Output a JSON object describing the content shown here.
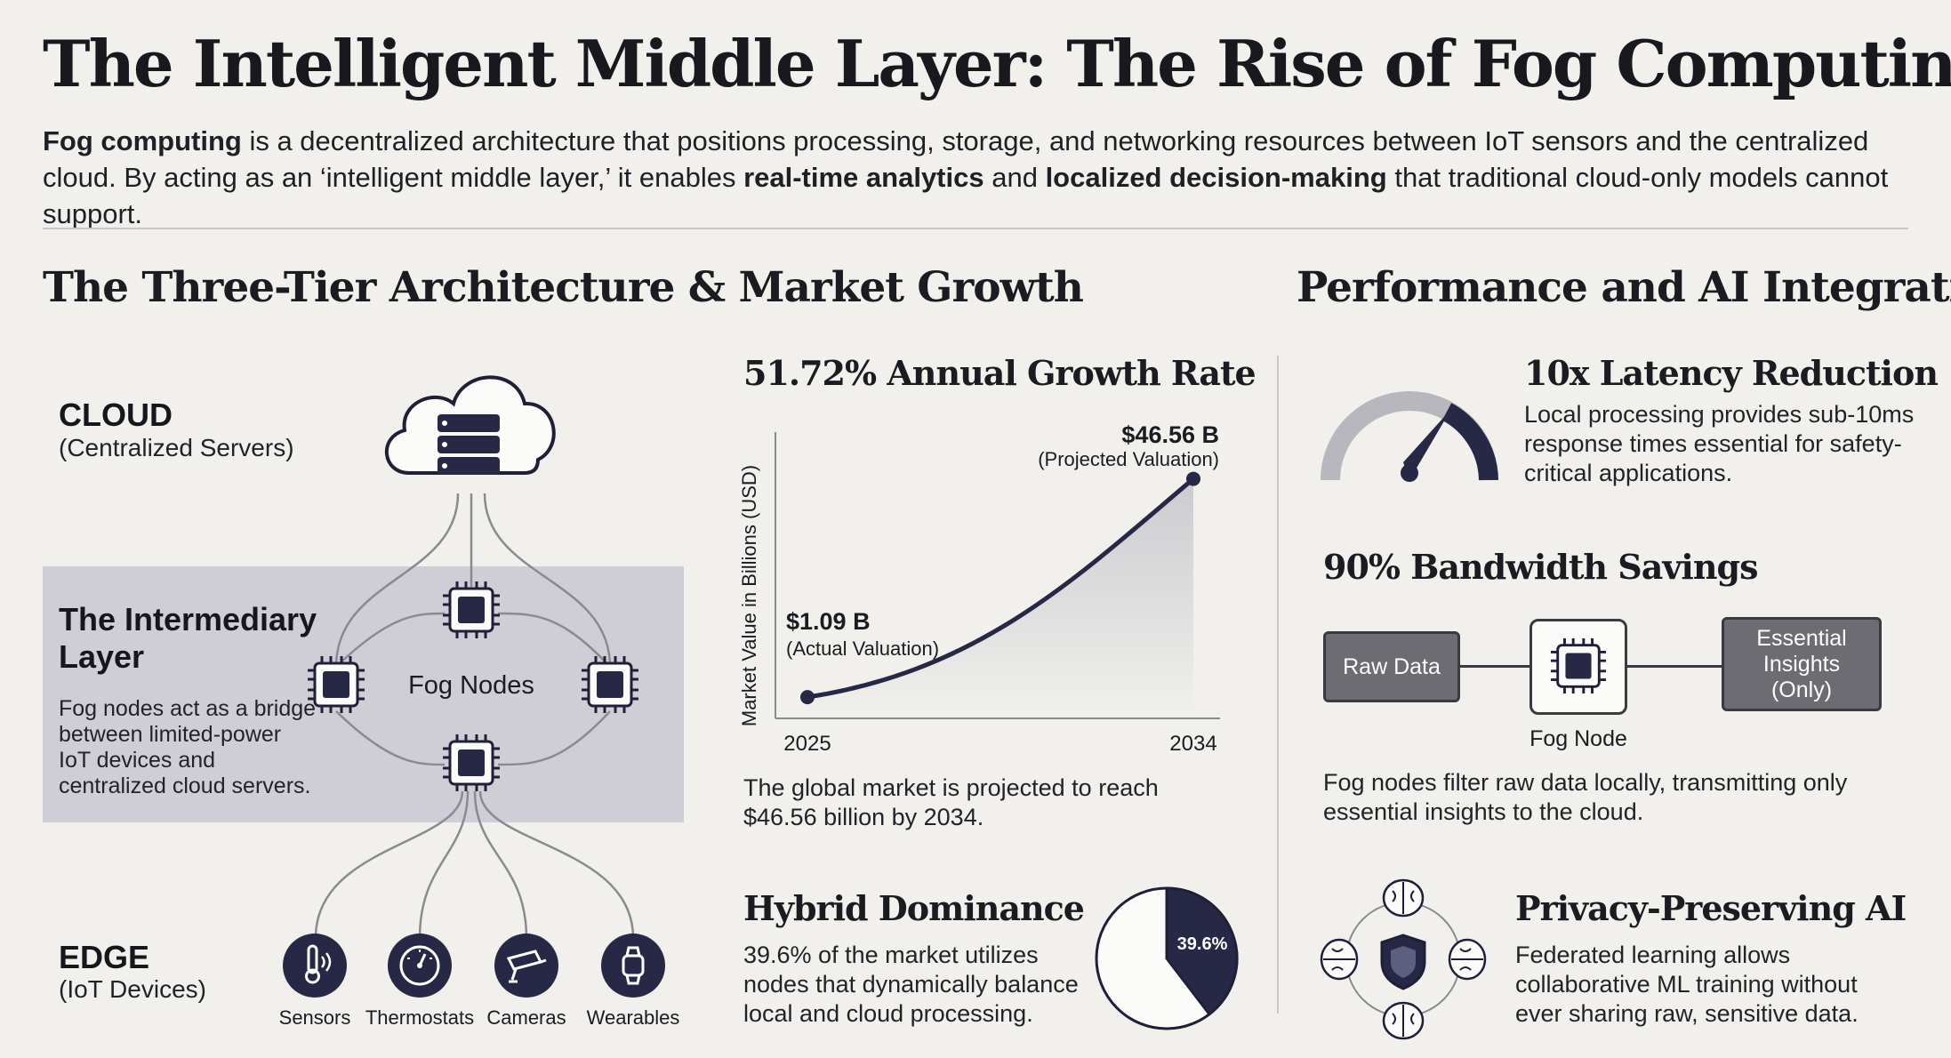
{
  "title": "The Intelligent Middle Layer: The Rise of Fog Computing",
  "intro": {
    "b1": "Fog computing",
    "t1": " is a decentralized architecture that positions processing, storage, and networking resources between IoT sensors and the centralized cloud. By acting as an ‘intelligent middle layer,’ it enables ",
    "b2": "real-time analytics",
    "t2": " and ",
    "b3": "localized decision-making",
    "t3": " that traditional cloud-only models cannot support."
  },
  "left_section": {
    "heading": "The Three-Tier Architecture & Market Growth",
    "cloud": {
      "label": "CLOUD",
      "sub": "(Centralized Servers)"
    },
    "middle": {
      "label": "The Intermediary Layer",
      "desc": "Fog nodes act as a bridge between limited-power IoT devices and centralized cloud servers.",
      "nodes_label": "Fog Nodes"
    },
    "edge": {
      "label": "EDGE",
      "sub": "(IoT Devices)"
    },
    "devices": [
      {
        "label": "Sensors",
        "icon": "thermometer-signal-icon"
      },
      {
        "label": "Thermostats",
        "icon": "dial-icon"
      },
      {
        "label": "Cameras",
        "icon": "camera-icon"
      },
      {
        "label": "Wearables",
        "icon": "smartwatch-icon"
      }
    ]
  },
  "growth": {
    "heading": "51.72% Annual Growth Rate",
    "caption": "The global market is projected to reach $46.56 billion by 2034."
  },
  "chart_data": {
    "type": "line",
    "ylabel": "Market Value in Billions (USD)",
    "x": [
      "2025",
      "2034"
    ],
    "series": [
      {
        "values": [
          1.09,
          46.56
        ]
      }
    ],
    "annotations": [
      {
        "value": "$1.09 B",
        "note": "(Actual Valuation)"
      },
      {
        "value": "$46.56 B",
        "note": "(Projected Valuation)"
      }
    ],
    "ylim": [
      0,
      50
    ],
    "grid": false
  },
  "hybrid": {
    "heading": "Hybrid Dominance",
    "text": "39.6% of the market utilizes nodes that dynamically balance local and cloud processing.",
    "pie_label": "39.6%",
    "share": 0.396
  },
  "right_section": {
    "heading": "Performance and AI Integration",
    "latency": {
      "heading": "10x Latency Reduction",
      "text": "Local processing provides sub-10ms response times essential for safety-critical applications."
    },
    "bandwidth": {
      "heading": "90% Bandwidth Savings",
      "raw": "Raw Data",
      "node": "Fog Node",
      "insights": "Essential Insights (Only)",
      "caption": "Fog nodes filter raw data locally, transmitting only essential insights to the cloud."
    },
    "privacy": {
      "heading": "Privacy-Preserving AI",
      "text": "Federated learning allows collaborative ML training without ever sharing raw, sensitive data."
    }
  },
  "colors": {
    "navy": "#262846",
    "background": "#f1f0ec",
    "band": "#cfced6",
    "gray_box": "#6c6c72"
  }
}
